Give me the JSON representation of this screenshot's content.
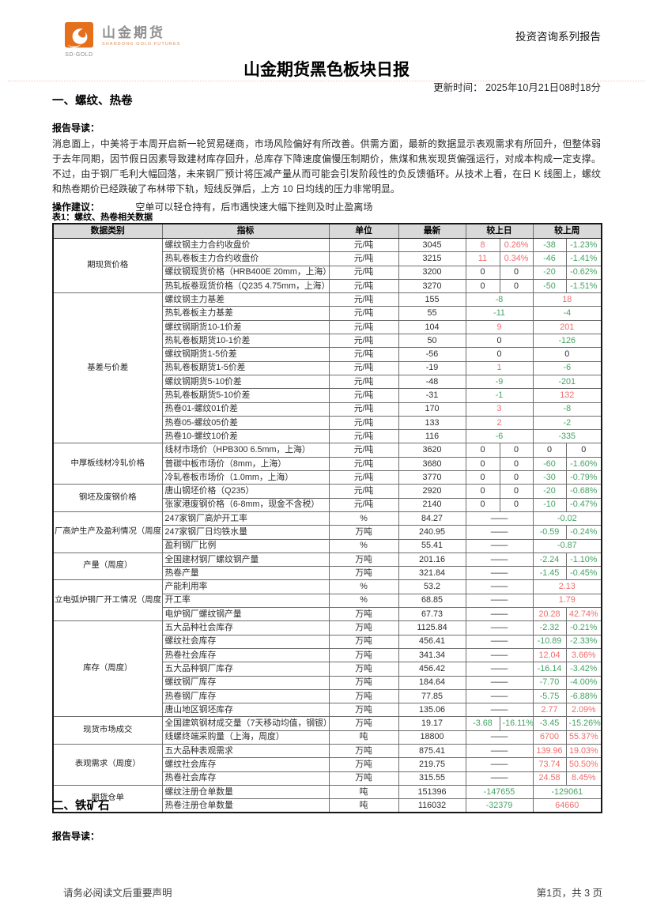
{
  "page": {
    "series_label": "投资咨询系列报告",
    "title": "山金期货黑色板块日报",
    "update_time": "更新时间： 2025年10月21日08时18分",
    "section1": "一、螺纹、热卷",
    "section2": "二、铁矿石",
    "footer_left": "请务必阅读文后重要声明",
    "footer_right": "第1页，共 3 页"
  },
  "logo": {
    "name": "山金期货",
    "subtitle": "SHANDONG GOLD FUTURES",
    "caption": "SD-GOLD",
    "brand_color": "#e4701e"
  },
  "intro": {
    "label": "报告导读：",
    "body": "消息面上，中美将于本周开启新一轮贸易磋商，市场风险偏好有所改善。供需方面，最新的数据显示表观需求有所回升，但整体弱于去年同期，因节假日因素导致建材库存回升，总库存下降速度偏慢压制期价，焦煤和焦炭现货偏强运行，对成本构成一定支撑。不过，由于钢厂毛利大幅回落，未来钢厂预计将压减产量从而可能会引发阶段性的负反馈循环。从技术上看，在日 K 线图上，螺纹和热卷期价已经跌破了布林带下轨，短线反弹后，上方 10 日均线的压力非常明显。"
  },
  "advice": {
    "label": "操作建议：",
    "body": "空单可以轻仓持有，后市遇快速大幅下挫则及时止盈离场"
  },
  "intro2": {
    "label": "报告导读："
  },
  "colors": {
    "up_red": "#f26c6c",
    "down_green": "#44a363",
    "header_bg": "#d9d9d9"
  },
  "table": {
    "caption": "表1：螺纹、热卷相关数据",
    "headers": [
      "数据类别",
      "指标",
      "单位",
      "最新",
      "较上日",
      "较上周"
    ],
    "groups": [
      {
        "category": "期现货价格",
        "rows": [
          {
            "label": "螺纹钢主力合约收盘价",
            "unit": "元/吨",
            "latest": "3045",
            "day": {
              "value": "8",
              "value_color": "r",
              "pct": "0.26%",
              "pct_color": "r"
            },
            "week": {
              "value": "-38",
              "value_color": "g",
              "pct": "-1.23%",
              "pct_color": "g"
            }
          },
          {
            "label": "热轧卷板主力合约收盘价",
            "unit": "元/吨",
            "latest": "3215",
            "day": {
              "value": "11",
              "value_color": "r",
              "pct": "0.34%",
              "pct_color": "r"
            },
            "week": {
              "value": "-46",
              "value_color": "g",
              "pct": "-1.41%",
              "pct_color": "g"
            }
          },
          {
            "label": "螺纹钢现货价格（HRB400E 20mm，上海）",
            "unit": "元/吨",
            "latest": "3200",
            "day": {
              "value": "0",
              "pct": "0"
            },
            "week": {
              "value": "-20",
              "value_color": "g",
              "pct": "-0.62%",
              "pct_color": "g"
            }
          },
          {
            "label": "热轧板卷现货价格（Q235 4.75mm，上海）",
            "unit": "元/吨",
            "latest": "3270",
            "day": {
              "value": "0",
              "pct": "0"
            },
            "week": {
              "value": "-50",
              "value_color": "g",
              "pct": "-1.51%",
              "pct_color": "g"
            }
          }
        ]
      },
      {
        "category": "基差与价差",
        "rows": [
          {
            "label": "螺纹钢主力基差",
            "unit": "元/吨",
            "latest": "155",
            "day": {
              "merged": "-8",
              "color": "g"
            },
            "week": {
              "merged": "18",
              "color": "r"
            }
          },
          {
            "label": "热轧卷板主力基差",
            "unit": "元/吨",
            "latest": "55",
            "day": {
              "merged": "-11",
              "color": "g"
            },
            "week": {
              "merged": "-4",
              "color": "g"
            }
          },
          {
            "label": "螺纹钢期货10-1价差",
            "unit": "元/吨",
            "latest": "104",
            "day": {
              "merged": "9",
              "color": "r"
            },
            "week": {
              "merged": "201",
              "color": "r"
            }
          },
          {
            "label": "热轧卷板期货10-1价差",
            "unit": "元/吨",
            "latest": "50",
            "day": {
              "merged": "0"
            },
            "week": {
              "merged": "-126",
              "color": "g"
            }
          },
          {
            "label": "螺纹钢期货1-5价差",
            "unit": "元/吨",
            "latest": "-56",
            "day": {
              "merged": "0"
            },
            "week": {
              "merged": "0"
            }
          },
          {
            "label": "热轧卷板期货1-5价差",
            "unit": "元/吨",
            "latest": "-19",
            "day": {
              "merged": "1",
              "color": "r"
            },
            "week": {
              "merged": "-6",
              "color": "g"
            }
          },
          {
            "label": "螺纹钢期货5-10价差",
            "unit": "元/吨",
            "latest": "-48",
            "day": {
              "merged": "-9",
              "color": "g"
            },
            "week": {
              "merged": "-201",
              "color": "g"
            }
          },
          {
            "label": "热轧卷板期货5-10价差",
            "unit": "元/吨",
            "latest": "-31",
            "day": {
              "merged": "-1",
              "color": "g"
            },
            "week": {
              "merged": "132",
              "color": "r"
            }
          },
          {
            "label": "热卷01-螺纹01价差",
            "unit": "元/吨",
            "latest": "170",
            "day": {
              "merged": "3",
              "color": "r"
            },
            "week": {
              "merged": "-8",
              "color": "g"
            }
          },
          {
            "label": "热卷05-螺纹05价差",
            "unit": "元/吨",
            "latest": "133",
            "day": {
              "merged": "2",
              "color": "r"
            },
            "week": {
              "merged": "-2",
              "color": "g"
            }
          },
          {
            "label": "热卷10-螺纹10价差",
            "unit": "元/吨",
            "latest": "116",
            "day": {
              "merged": "-6",
              "color": "g"
            },
            "week": {
              "merged": "-335",
              "color": "g"
            }
          }
        ]
      },
      {
        "category": "中厚板线材冷轧价格",
        "rows": [
          {
            "label": "线材市场价（HPB300 6.5mm，上海）",
            "unit": "元/吨",
            "latest": "3620",
            "day": {
              "value": "0",
              "pct": "0"
            },
            "week": {
              "value": "0",
              "pct": "0"
            }
          },
          {
            "label": "普碳中板市场价（8mm，上海）",
            "unit": "元/吨",
            "latest": "3680",
            "day": {
              "value": "0",
              "pct": "0"
            },
            "week": {
              "value": "-60",
              "value_color": "g",
              "pct": "-1.60%",
              "pct_color": "g"
            }
          },
          {
            "label": "冷轧卷板市场价（1.0mm，上海）",
            "unit": "元/吨",
            "latest": "3770",
            "day": {
              "value": "0",
              "pct": "0"
            },
            "week": {
              "value": "-30",
              "value_color": "g",
              "pct": "-0.79%",
              "pct_color": "g"
            }
          }
        ]
      },
      {
        "category": "钢坯及废钢价格",
        "rows": [
          {
            "label": "唐山钢坯价格（Q235）",
            "unit": "元/吨",
            "latest": "2920",
            "day": {
              "value": "0",
              "pct": "0"
            },
            "week": {
              "value": "-20",
              "value_color": "g",
              "pct": "-0.68%",
              "pct_color": "g"
            }
          },
          {
            "label": "张家港废钢价格（6-8mm，现金不含税）",
            "unit": "元/吨",
            "latest": "2140",
            "day": {
              "value": "0",
              "pct": "0"
            },
            "week": {
              "value": "-10",
              "value_color": "g",
              "pct": "-0.47%",
              "pct_color": "g"
            }
          }
        ]
      },
      {
        "category": "厂高炉生产及盈利情况（周度",
        "rows": [
          {
            "label": "247家钢厂高炉开工率",
            "unit": "%",
            "latest": "84.27",
            "day": {
              "merged": "——"
            },
            "week": {
              "merged": "-0.02",
              "color": "g"
            }
          },
          {
            "label": "247家钢厂日均铁水量",
            "unit": "万吨",
            "latest": "240.95",
            "day": {
              "merged": "——"
            },
            "week": {
              "value": "-0.59",
              "value_color": "g",
              "pct": "-0.24%",
              "pct_color": "g"
            }
          },
          {
            "label": "盈利钢厂比例",
            "unit": "%",
            "latest": "55.41",
            "day": {
              "merged": "——"
            },
            "week": {
              "merged": "-0.87",
              "color": "g"
            }
          }
        ]
      },
      {
        "category": "产量（周度）",
        "rows": [
          {
            "label": "全国建材钢厂螺纹钢产量",
            "unit": "万吨",
            "latest": "201.16",
            "day": {
              "merged": "——"
            },
            "week": {
              "value": "-2.24",
              "value_color": "g",
              "pct": "-1.10%",
              "pct_color": "g"
            }
          },
          {
            "label": "热卷产量",
            "unit": "万吨",
            "latest": "321.84",
            "day": {
              "merged": "——"
            },
            "week": {
              "value": "-1.45",
              "value_color": "g",
              "pct": "-0.45%",
              "pct_color": "g"
            }
          }
        ]
      },
      {
        "category": "立电弧炉钢厂开工情况（周度",
        "rows": [
          {
            "label": "产能利用率",
            "unit": "%",
            "latest": "53.2",
            "day": {
              "merged": "——"
            },
            "week": {
              "merged": "2.13",
              "color": "r"
            }
          },
          {
            "label": "开工率",
            "unit": "%",
            "latest": "68.85",
            "day": {
              "merged": "——"
            },
            "week": {
              "merged": "1.79",
              "color": "r"
            }
          },
          {
            "label": "电炉钢厂螺纹钢产量",
            "unit": "万吨",
            "latest": "67.73",
            "day": {
              "merged": "——"
            },
            "week": {
              "value": "20.28",
              "value_color": "r",
              "pct": "42.74%",
              "pct_color": "r"
            }
          }
        ]
      },
      {
        "category": "库存（周度）",
        "rows": [
          {
            "label": "五大品种社会库存",
            "unit": "万吨",
            "latest": "1125.84",
            "day": {
              "merged": "——"
            },
            "week": {
              "value": "-2.32",
              "value_color": "g",
              "pct": "-0.21%",
              "pct_color": "g"
            }
          },
          {
            "label": "螺纹社会库存",
            "unit": "万吨",
            "latest": "456.41",
            "day": {
              "merged": "——"
            },
            "week": {
              "value": "-10.89",
              "value_color": "g",
              "pct": "-2.33%",
              "pct_color": "g"
            }
          },
          {
            "label": "热卷社会库存",
            "unit": "万吨",
            "latest": "341.34",
            "day": {
              "merged": "——"
            },
            "week": {
              "value": "12.04",
              "value_color": "r",
              "pct": "3.66%",
              "pct_color": "r"
            }
          },
          {
            "label": "五大品种钢厂库存",
            "unit": "万吨",
            "latest": "456.42",
            "day": {
              "merged": "——"
            },
            "week": {
              "value": "-16.14",
              "value_color": "g",
              "pct": "-3.42%",
              "pct_color": "g"
            }
          },
          {
            "label": "螺纹钢厂库存",
            "unit": "万吨",
            "latest": "184.64",
            "day": {
              "merged": "——"
            },
            "week": {
              "value": "-7.70",
              "value_color": "g",
              "pct": "-4.00%",
              "pct_color": "g"
            }
          },
          {
            "label": "热卷钢厂库存",
            "unit": "万吨",
            "latest": "77.85",
            "day": {
              "merged": "——"
            },
            "week": {
              "value": "-5.75",
              "value_color": "g",
              "pct": "-6.88%",
              "pct_color": "g"
            }
          },
          {
            "label": "唐山地区钢坯库存",
            "unit": "万吨",
            "latest": "135.06",
            "day": {
              "merged": "——"
            },
            "week": {
              "value": "2.77",
              "value_color": "r",
              "pct": "2.09%",
              "pct_color": "r"
            }
          }
        ]
      },
      {
        "category": "现货市场成交",
        "rows": [
          {
            "label": "全国建筑钢材成交量（7天移动均值，钢银）",
            "unit": "万吨",
            "latest": "19.17",
            "day": {
              "value": "-3.68",
              "value_color": "g",
              "pct": "-16.11%",
              "pct_color": "g"
            },
            "week": {
              "value": "-3.45",
              "value_color": "g",
              "pct": "-15.26%",
              "pct_color": "g"
            }
          },
          {
            "label": "线螺终端采购量（上海，周度）",
            "unit": "吨",
            "latest": "18800",
            "day": {
              "merged": "——"
            },
            "week": {
              "value": "6700",
              "value_color": "r",
              "pct": "55.37%",
              "pct_color": "r"
            }
          }
        ]
      },
      {
        "category": "表观需求（周度）",
        "rows": [
          {
            "label": "五大品种表观需求",
            "unit": "万吨",
            "latest": "875.41",
            "day": {
              "merged": "——"
            },
            "week": {
              "value": "139.96",
              "value_color": "r",
              "pct": "19.03%",
              "pct_color": "r"
            }
          },
          {
            "label": "螺纹社会库存",
            "unit": "万吨",
            "latest": "219.75",
            "day": {
              "merged": "——"
            },
            "week": {
              "value": "73.74",
              "value_color": "r",
              "pct": "50.50%",
              "pct_color": "r"
            }
          },
          {
            "label": "热卷社会库存",
            "unit": "万吨",
            "latest": "315.55",
            "day": {
              "merged": "——"
            },
            "week": {
              "value": "24.58",
              "value_color": "r",
              "pct": "8.45%",
              "pct_color": "r"
            }
          }
        ]
      },
      {
        "category": "期货仓单",
        "rows": [
          {
            "label": "螺纹注册仓单数量",
            "unit": "吨",
            "latest": "151396",
            "day": {
              "merged": "-147655",
              "color": "g"
            },
            "week": {
              "merged": "-129061",
              "color": "g"
            }
          },
          {
            "label": "热卷注册仓单数量",
            "unit": "吨",
            "latest": "116032",
            "day": {
              "merged": "-32379",
              "color": "g"
            },
            "week": {
              "merged": "64660",
              "color": "r"
            }
          }
        ]
      }
    ]
  }
}
